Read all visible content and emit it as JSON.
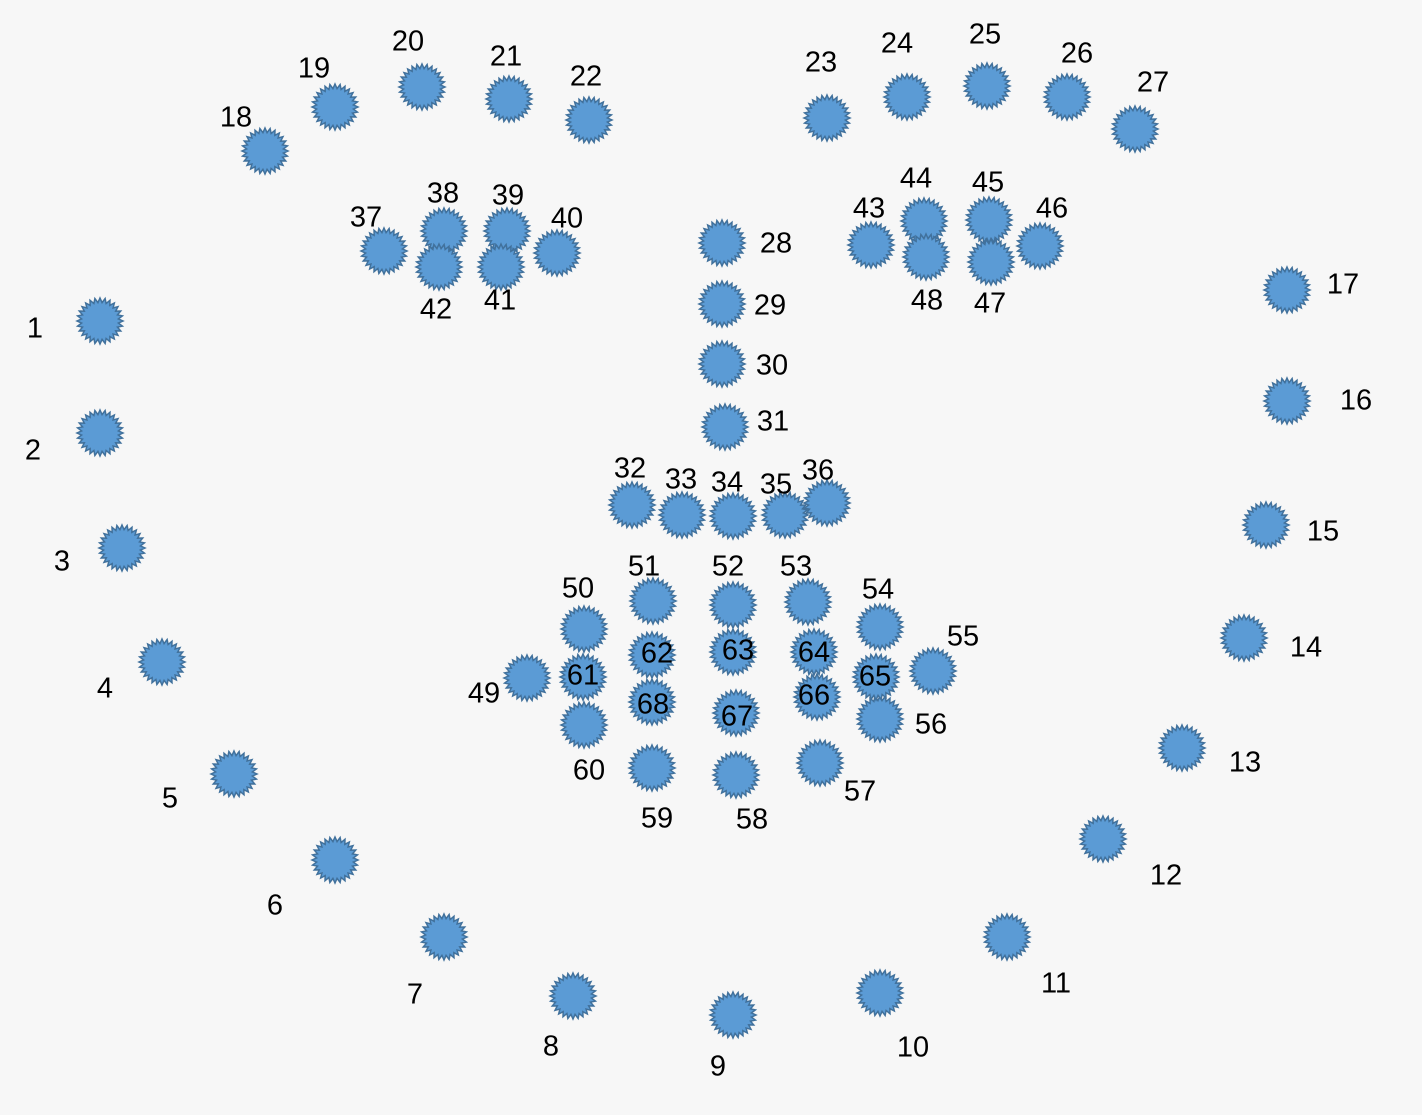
{
  "colors": {
    "background": "#f7f7f7",
    "marker_fill": "#5b9bd5",
    "marker_edge": "#41719c",
    "label": "#000000"
  },
  "marker_icon": "starburst-marker-icon",
  "landmarks": [
    {
      "id": "1",
      "label": "1"
    },
    {
      "id": "2",
      "label": "2"
    },
    {
      "id": "3",
      "label": "3"
    },
    {
      "id": "4",
      "label": "4"
    },
    {
      "id": "5",
      "label": "5"
    },
    {
      "id": "6",
      "label": "6"
    },
    {
      "id": "7",
      "label": "7"
    },
    {
      "id": "8",
      "label": "8"
    },
    {
      "id": "9",
      "label": "9"
    },
    {
      "id": "10",
      "label": "10"
    },
    {
      "id": "11",
      "label": "11"
    },
    {
      "id": "12",
      "label": "12"
    },
    {
      "id": "13",
      "label": "13"
    },
    {
      "id": "14",
      "label": "14"
    },
    {
      "id": "15",
      "label": "15"
    },
    {
      "id": "16",
      "label": "16"
    },
    {
      "id": "17",
      "label": "17"
    },
    {
      "id": "18",
      "label": "18"
    },
    {
      "id": "19",
      "label": "19"
    },
    {
      "id": "20",
      "label": "20"
    },
    {
      "id": "21",
      "label": "21"
    },
    {
      "id": "22",
      "label": "22"
    },
    {
      "id": "23",
      "label": "23"
    },
    {
      "id": "24",
      "label": "24"
    },
    {
      "id": "25",
      "label": "25"
    },
    {
      "id": "26",
      "label": "26"
    },
    {
      "id": "27",
      "label": "27"
    },
    {
      "id": "28",
      "label": "28"
    },
    {
      "id": "29",
      "label": "29"
    },
    {
      "id": "30",
      "label": "30"
    },
    {
      "id": "31",
      "label": "31"
    },
    {
      "id": "32",
      "label": "32"
    },
    {
      "id": "33",
      "label": "33"
    },
    {
      "id": "34",
      "label": "34"
    },
    {
      "id": "35",
      "label": "35"
    },
    {
      "id": "36",
      "label": "36"
    },
    {
      "id": "37",
      "label": "37"
    },
    {
      "id": "38",
      "label": "38"
    },
    {
      "id": "39",
      "label": "39"
    },
    {
      "id": "40",
      "label": "40"
    },
    {
      "id": "41",
      "label": "41"
    },
    {
      "id": "42",
      "label": "42"
    },
    {
      "id": "43",
      "label": "43"
    },
    {
      "id": "44",
      "label": "44"
    },
    {
      "id": "45",
      "label": "45"
    },
    {
      "id": "46",
      "label": "46"
    },
    {
      "id": "47",
      "label": "47"
    },
    {
      "id": "48",
      "label": "48"
    },
    {
      "id": "49",
      "label": "49"
    },
    {
      "id": "50",
      "label": "50"
    },
    {
      "id": "51",
      "label": "51"
    },
    {
      "id": "52",
      "label": "52"
    },
    {
      "id": "53",
      "label": "53"
    },
    {
      "id": "54",
      "label": "54"
    },
    {
      "id": "55",
      "label": "55"
    },
    {
      "id": "56",
      "label": "56"
    },
    {
      "id": "57",
      "label": "57"
    },
    {
      "id": "58",
      "label": "58"
    },
    {
      "id": "59",
      "label": "59"
    },
    {
      "id": "60",
      "label": "60"
    },
    {
      "id": "61",
      "label": "61"
    },
    {
      "id": "62",
      "label": "62"
    },
    {
      "id": "63",
      "label": "63"
    },
    {
      "id": "64",
      "label": "64"
    },
    {
      "id": "65",
      "label": "65"
    },
    {
      "id": "66",
      "label": "66"
    },
    {
      "id": "67",
      "label": "67"
    },
    {
      "id": "68",
      "label": "68"
    }
  ]
}
